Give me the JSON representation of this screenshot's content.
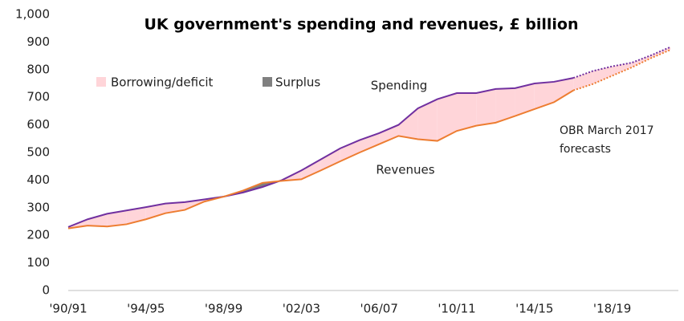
{
  "chart_data": {
    "type": "line",
    "title": "UK government's spending and revenues, £ billion",
    "categories": [
      "'90/91",
      null,
      null,
      null,
      "'94/95",
      null,
      null,
      null,
      "'98/99",
      null,
      null,
      null,
      "'02/03",
      null,
      null,
      null,
      "'06/07",
      null,
      null,
      null,
      "'10/11",
      null,
      null,
      null,
      "'14/15",
      null,
      null,
      null,
      "'18/19",
      null,
      null,
      null
    ],
    "series": [
      {
        "name": "Spending",
        "color": "#7030a0",
        "values": [
          230,
          258,
          278,
          290,
          302,
          315,
          320,
          330,
          340,
          355,
          375,
          400,
          435,
          475,
          515,
          545,
          570,
          600,
          660,
          693,
          715,
          715,
          730,
          733,
          750,
          756,
          770,
          null,
          null,
          null,
          null,
          null
        ],
        "forecast_values": [
          null,
          null,
          null,
          null,
          null,
          null,
          null,
          null,
          null,
          null,
          null,
          null,
          null,
          null,
          null,
          null,
          null,
          null,
          null,
          null,
          null,
          null,
          null,
          null,
          null,
          null,
          770,
          795,
          812,
          825,
          852,
          882
        ]
      },
      {
        "name": "Revenues",
        "color": "#ed7d31",
        "values": [
          225,
          235,
          232,
          240,
          258,
          280,
          292,
          322,
          340,
          362,
          390,
          397,
          403,
          435,
          468,
          500,
          530,
          560,
          548,
          542,
          578,
          597,
          608,
          632,
          657,
          682,
          725,
          null,
          null,
          null,
          null,
          null
        ],
        "forecast_values": [
          null,
          null,
          null,
          null,
          null,
          null,
          null,
          null,
          null,
          null,
          null,
          null,
          null,
          null,
          null,
          null,
          null,
          null,
          null,
          null,
          null,
          null,
          null,
          null,
          null,
          null,
          725,
          748,
          778,
          808,
          842,
          872
        ]
      }
    ],
    "legend": [
      {
        "name": "Borrowing/deficit",
        "color": "#ffd5d9"
      },
      {
        "name": "Surplus",
        "color": "#808080"
      }
    ],
    "annotation": [
      "OBR March 2017",
      "forecasts"
    ],
    "ylim": [
      0,
      1000
    ],
    "yticks": [
      0,
      100,
      200,
      300,
      400,
      500,
      600,
      700,
      800,
      900,
      {
        "value": 1000,
        "label": "1,000"
      }
    ]
  }
}
